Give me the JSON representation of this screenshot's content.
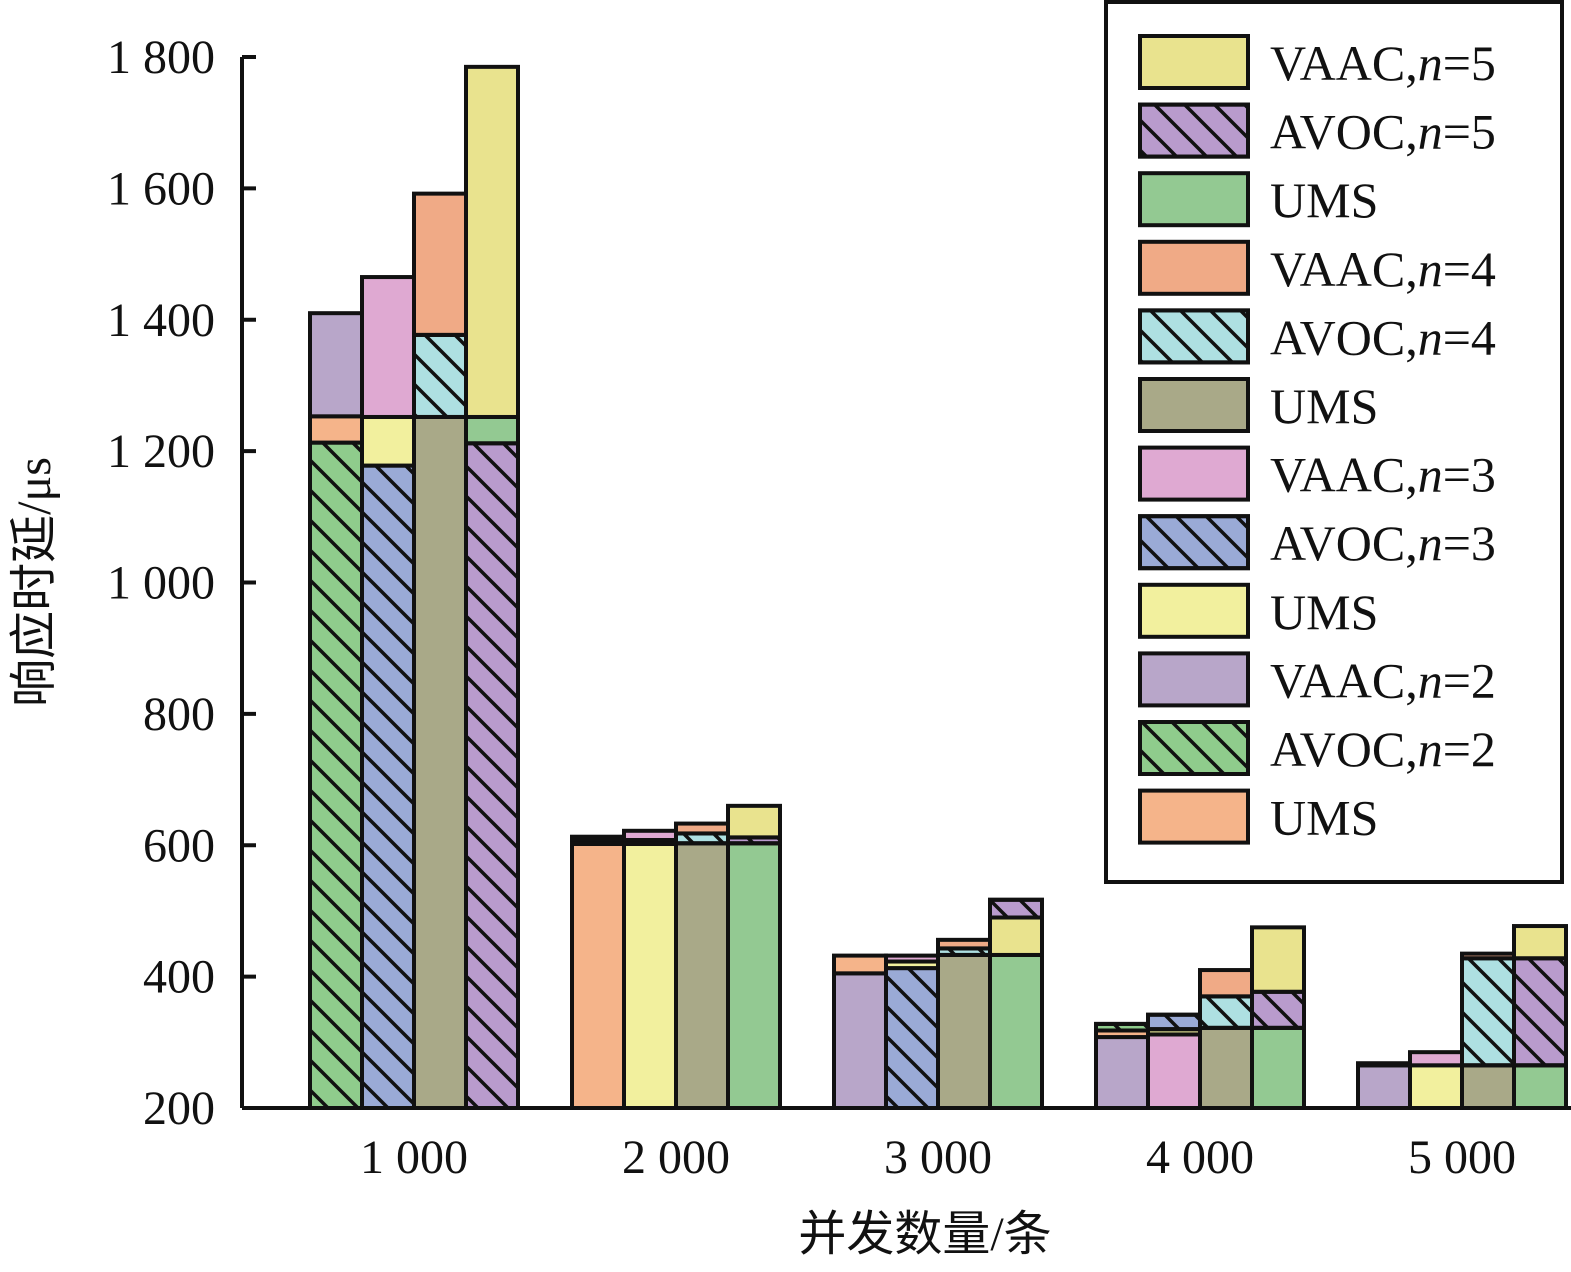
{
  "chart_data": {
    "type": "bar",
    "subtype": "grouped-stacked",
    "xlabel": "并发数量/条",
    "ylabel": "响应时延/μs",
    "ylim": [
      200,
      1800
    ],
    "y_ticks": [
      "200",
      "400",
      "600",
      "800",
      "1 000",
      "1 200",
      "1 400",
      "1 600",
      "1 800"
    ],
    "y_tick_values": [
      200,
      400,
      600,
      800,
      1000,
      1200,
      1400,
      1600,
      1800
    ],
    "categories": [
      "1 000",
      "2 000",
      "3 000",
      "4 000",
      "5 000"
    ],
    "grid": false,
    "legend_position": "top-right",
    "colors": {
      "ums_n2": "#f5b48a",
      "avoc_n2": "#8fcc8c",
      "vaac_n2": "#b8a6c9",
      "ums_n3": "#f2f09e",
      "avoc_n3": "#9aaad6",
      "vaac_n3": "#dfa9d2",
      "ums_n4": "#a9a988",
      "avoc_n4": "#aee0e2",
      "vaac_n4": "#f0aa86",
      "ums_n5": "#93c992",
      "avoc_n5": "#b99bcd",
      "vaac_n5": "#e9e38e"
    },
    "legend": [
      {
        "label": "VAAC,",
        "n": "n",
        "eq": "=5",
        "key": "vaac_n5",
        "hatch": false
      },
      {
        "label": "AVOC,",
        "n": "n",
        "eq": "=5",
        "key": "avoc_n5",
        "hatch": true
      },
      {
        "label": "UMS",
        "n": "",
        "eq": "",
        "key": "ums_n5",
        "hatch": false
      },
      {
        "label": "VAAC,",
        "n": "n",
        "eq": "=4",
        "key": "vaac_n4",
        "hatch": false
      },
      {
        "label": "AVOC,",
        "n": "n",
        "eq": "=4",
        "key": "avoc_n4",
        "hatch": true
      },
      {
        "label": "UMS",
        "n": "",
        "eq": "",
        "key": "ums_n4",
        "hatch": false
      },
      {
        "label": "VAAC,",
        "n": "n",
        "eq": "=3",
        "key": "vaac_n3",
        "hatch": false
      },
      {
        "label": "AVOC,",
        "n": "n",
        "eq": "=3",
        "key": "avoc_n3",
        "hatch": true
      },
      {
        "label": "UMS",
        "n": "",
        "eq": "",
        "key": "ums_n3",
        "hatch": false
      },
      {
        "label": "VAAC,",
        "n": "n",
        "eq": "=2",
        "key": "vaac_n2",
        "hatch": false
      },
      {
        "label": "AVOC,",
        "n": "n",
        "eq": "=2",
        "key": "avoc_n2",
        "hatch": true
      },
      {
        "label": "UMS",
        "n": "",
        "eq": "",
        "key": "ums_n2",
        "hatch": false
      }
    ],
    "groups": [
      {
        "category": "1 000",
        "bars": [
          {
            "stack": [
              {
                "key": "avoc_n2",
                "value": 1213,
                "hatch": true
              },
              {
                "key": "ums_n2",
                "value": 1253,
                "hatch": false
              },
              {
                "key": "vaac_n2",
                "value": 1410,
                "hatch": false
              }
            ]
          },
          {
            "stack": [
              {
                "key": "avoc_n3",
                "value": 1178,
                "hatch": true
              },
              {
                "key": "ums_n3",
                "value": 1252,
                "hatch": false
              },
              {
                "key": "vaac_n3",
                "value": 1465,
                "hatch": false
              }
            ]
          },
          {
            "stack": [
              {
                "key": "ums_n4",
                "value": 1252,
                "hatch": false
              },
              {
                "key": "avoc_n4",
                "value": 1377,
                "hatch": true
              },
              {
                "key": "vaac_n4",
                "value": 1592,
                "hatch": false
              }
            ]
          },
          {
            "stack": [
              {
                "key": "avoc_n5",
                "value": 1212,
                "hatch": true
              },
              {
                "key": "ums_n5",
                "value": 1252,
                "hatch": false
              },
              {
                "key": "vaac_n5",
                "value": 1785,
                "hatch": false
              }
            ]
          }
        ]
      },
      {
        "category": "2 000",
        "bars": [
          {
            "stack": [
              {
                "key": "ums_n2",
                "value": 602,
                "hatch": false
              },
              {
                "key": "avoc_n2",
                "value": 608,
                "hatch": true
              },
              {
                "key": "vaac_n2",
                "value": 613,
                "hatch": false
              }
            ]
          },
          {
            "stack": [
              {
                "key": "ums_n3",
                "value": 602,
                "hatch": false
              },
              {
                "key": "avoc_n3",
                "value": 608,
                "hatch": true
              },
              {
                "key": "vaac_n3",
                "value": 622,
                "hatch": false
              }
            ]
          },
          {
            "stack": [
              {
                "key": "ums_n4",
                "value": 603,
                "hatch": false
              },
              {
                "key": "avoc_n4",
                "value": 618,
                "hatch": true
              },
              {
                "key": "vaac_n4",
                "value": 633,
                "hatch": false
              }
            ]
          },
          {
            "stack": [
              {
                "key": "ums_n5",
                "value": 603,
                "hatch": false
              },
              {
                "key": "avoc_n5",
                "value": 612,
                "hatch": true
              },
              {
                "key": "vaac_n5",
                "value": 660,
                "hatch": false
              }
            ]
          }
        ]
      },
      {
        "category": "3 000",
        "bars": [
          {
            "stack": [
              {
                "key": "vaac_n2",
                "value": 405,
                "hatch": false
              },
              {
                "key": "ums_n2",
                "value": 432,
                "hatch": false
              }
            ]
          },
          {
            "stack": [
              {
                "key": "avoc_n3",
                "value": 413,
                "hatch": true
              },
              {
                "key": "ums_n3",
                "value": 423,
                "hatch": false
              },
              {
                "key": "vaac_n3",
                "value": 432,
                "hatch": false
              }
            ]
          },
          {
            "stack": [
              {
                "key": "ums_n4",
                "value": 433,
                "hatch": false
              },
              {
                "key": "avoc_n4",
                "value": 443,
                "hatch": true
              },
              {
                "key": "vaac_n4",
                "value": 456,
                "hatch": false
              }
            ]
          },
          {
            "stack": [
              {
                "key": "ums_n5",
                "value": 433,
                "hatch": false
              },
              {
                "key": "vaac_n5",
                "value": 490,
                "hatch": false
              },
              {
                "key": "avoc_n5",
                "value": 517,
                "hatch": true
              }
            ]
          }
        ]
      },
      {
        "category": "4 000",
        "bars": [
          {
            "stack": [
              {
                "key": "vaac_n2",
                "value": 308,
                "hatch": false
              },
              {
                "key": "ums_n2",
                "value": 318,
                "hatch": false
              },
              {
                "key": "avoc_n2",
                "value": 328,
                "hatch": true
              }
            ]
          },
          {
            "stack": [
              {
                "key": "vaac_n3",
                "value": 312,
                "hatch": false
              },
              {
                "key": "ums_n3",
                "value": 320,
                "hatch": false
              },
              {
                "key": "avoc_n3",
                "value": 342,
                "hatch": true
              }
            ]
          },
          {
            "stack": [
              {
                "key": "ums_n4",
                "value": 322,
                "hatch": false
              },
              {
                "key": "avoc_n4",
                "value": 370,
                "hatch": true
              },
              {
                "key": "vaac_n4",
                "value": 410,
                "hatch": false
              }
            ]
          },
          {
            "stack": [
              {
                "key": "ums_n5",
                "value": 322,
                "hatch": false
              },
              {
                "key": "avoc_n5",
                "value": 377,
                "hatch": true
              },
              {
                "key": "vaac_n5",
                "value": 475,
                "hatch": false
              }
            ]
          }
        ]
      },
      {
        "category": "5 000",
        "bars": [
          {
            "stack": [
              {
                "key": "vaac_n2",
                "value": 265,
                "hatch": false
              },
              {
                "key": "avoc_n2",
                "value": 268,
                "hatch": true
              }
            ]
          },
          {
            "stack": [
              {
                "key": "ums_n3",
                "value": 265,
                "hatch": false
              },
              {
                "key": "vaac_n3",
                "value": 285,
                "hatch": false
              }
            ]
          },
          {
            "stack": [
              {
                "key": "ums_n4",
                "value": 265,
                "hatch": false
              },
              {
                "key": "avoc_n4",
                "value": 428,
                "hatch": true
              },
              {
                "key": "vaac_n4",
                "value": 435,
                "hatch": false
              }
            ]
          },
          {
            "stack": [
              {
                "key": "ums_n5",
                "value": 265,
                "hatch": false
              },
              {
                "key": "avoc_n5",
                "value": 428,
                "hatch": true
              },
              {
                "key": "vaac_n5",
                "value": 477,
                "hatch": false
              }
            ]
          }
        ]
      }
    ]
  }
}
